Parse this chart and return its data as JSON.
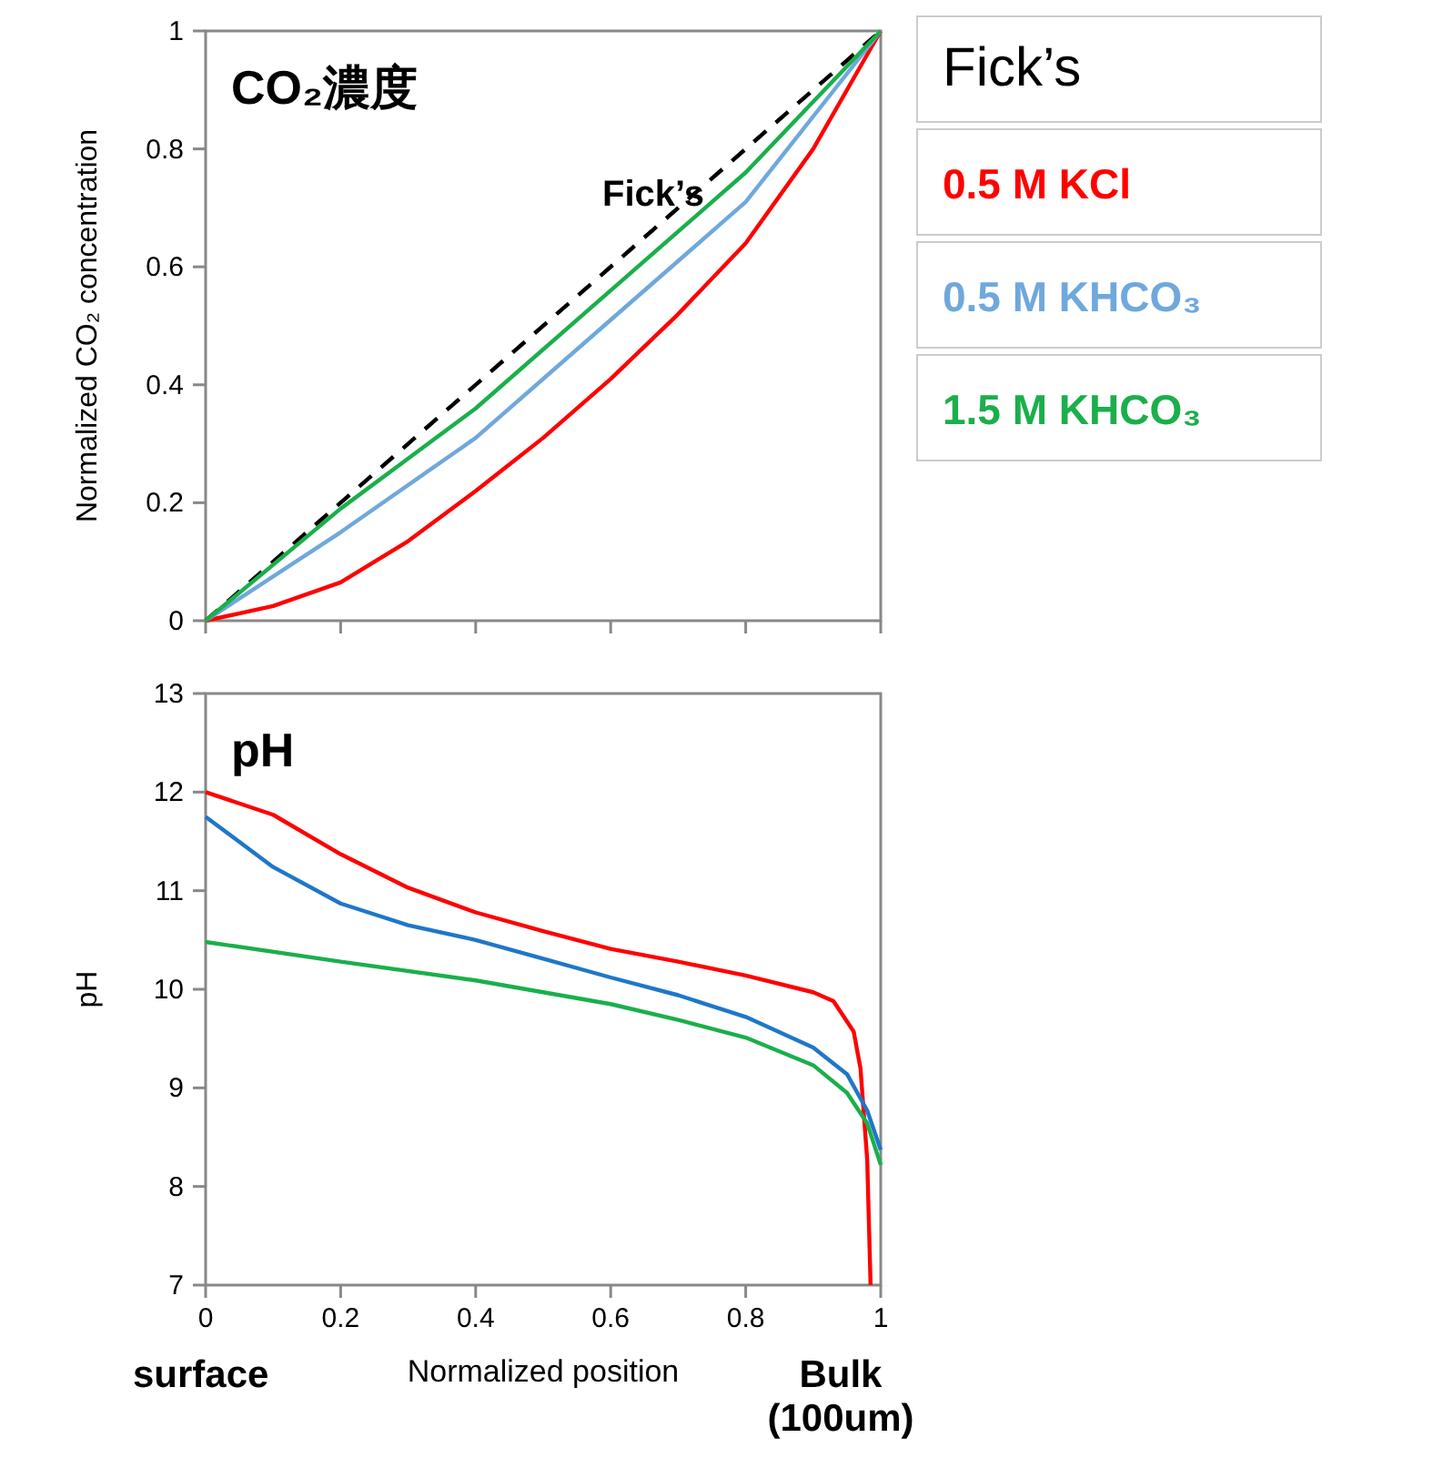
{
  "chart_data": [
    {
      "type": "line",
      "ylabel": "Normalized CO₂ concentration",
      "xlim": [
        0,
        1
      ],
      "ylim": [
        0,
        1
      ],
      "xticks": [
        {
          "value": 0,
          "label": null
        },
        {
          "value": 0.2,
          "label": null
        },
        {
          "value": 0.4,
          "label": null
        },
        {
          "value": 0.6,
          "label": null
        },
        {
          "value": 0.8,
          "label": null
        },
        {
          "value": 1,
          "label": null
        }
      ],
      "yticks": [
        0,
        0.2,
        0.4,
        0.6,
        0.8,
        1
      ],
      "tick_labels": "y",
      "legend": "right",
      "annotations": [
        "CO₂濃度",
        "Fick’s"
      ],
      "series": [
        {
          "name": "Fick’s",
          "color": "#000000",
          "line_style": "dashed",
          "x": [
            0,
            1
          ],
          "values": [
            0,
            1
          ]
        },
        {
          "name": "0.5 M KCl",
          "color": "#ff0000",
          "x": [
            0,
            0.1,
            0.2,
            0.3,
            0.4,
            0.5,
            0.6,
            0.7,
            0.8,
            0.9,
            1
          ],
          "values": [
            0,
            0.025,
            0.065,
            0.135,
            0.22,
            0.31,
            0.41,
            0.52,
            0.64,
            0.8,
            1
          ]
        },
        {
          "name": "0.5 M KHCO₃",
          "color": "#6fa8dc",
          "x": [
            0,
            0.2,
            0.4,
            0.6,
            0.8,
            1
          ],
          "values": [
            0,
            0.15,
            0.31,
            0.51,
            0.71,
            1
          ]
        },
        {
          "name": "1.5 M KHCO₃",
          "color": "#1aaf4b",
          "x": [
            0,
            0.2,
            0.4,
            0.6,
            0.8,
            1
          ],
          "values": [
            0,
            0.19,
            0.36,
            0.56,
            0.76,
            1
          ]
        }
      ]
    },
    {
      "type": "line",
      "xlabel": "Normalized position",
      "ylabel": "pH",
      "xlim": [
        0,
        1
      ],
      "ylim": [
        7,
        13
      ],
      "xticks": [
        0,
        0.2,
        0.4,
        0.6,
        0.8,
        1
      ],
      "yticks": [
        7,
        8,
        9,
        10,
        11,
        12,
        13
      ],
      "annotations": [
        "pH",
        "surface",
        "Bulk\n(100um)"
      ],
      "series": [
        {
          "color": "#ff0000",
          "x": [
            0,
            0.1,
            0.2,
            0.3,
            0.4,
            0.5,
            0.6,
            0.7,
            0.8,
            0.9,
            0.93,
            0.96,
            0.97,
            0.98,
            0.985
          ],
          "values": [
            12.0,
            11.77,
            11.37,
            11.03,
            10.78,
            10.59,
            10.41,
            10.28,
            10.14,
            9.97,
            9.88,
            9.57,
            9.2,
            8.27,
            7.0
          ]
        },
        {
          "color": "#1f77c8",
          "x": [
            0,
            0.1,
            0.2,
            0.3,
            0.4,
            0.5,
            0.6,
            0.7,
            0.8,
            0.9,
            0.95,
            0.98,
            1
          ],
          "values": [
            11.75,
            11.24,
            10.87,
            10.65,
            10.5,
            10.31,
            10.12,
            9.94,
            9.72,
            9.41,
            9.14,
            8.77,
            8.37
          ]
        },
        {
          "color": "#1aaf4b",
          "x": [
            0,
            0.2,
            0.4,
            0.6,
            0.7,
            0.8,
            0.9,
            0.95,
            0.98,
            1
          ],
          "values": [
            10.48,
            10.28,
            10.09,
            9.85,
            9.69,
            9.51,
            9.23,
            8.95,
            8.64,
            8.22
          ]
        }
      ]
    }
  ]
}
